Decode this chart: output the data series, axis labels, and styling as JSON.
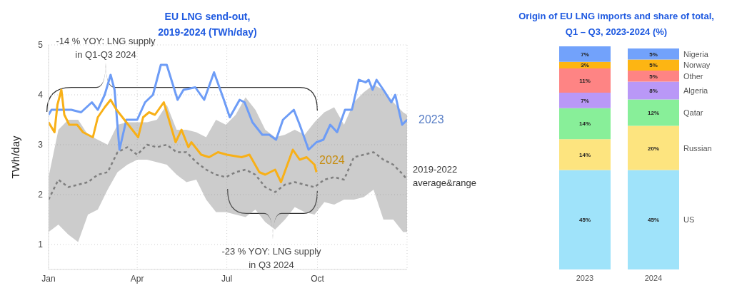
{
  "chart_data": [
    {
      "type": "line",
      "title": "EU LNG send-out,\n2019-2024 (TWh/day)",
      "ylabel": "TWh/day",
      "xlim": [
        "--01-01",
        "--12-31"
      ],
      "xticks": [
        {
          "value": "--01-01",
          "label": "Jan"
        },
        {
          "value": "--04-01",
          "label": "Apr"
        },
        {
          "value": "--07-01",
          "label": "Jul"
        },
        {
          "value": "--10-01",
          "label": "Oct"
        }
      ],
      "ylim": [
        0.5,
        5
      ],
      "yticks": [
        1,
        2,
        3,
        4,
        5
      ],
      "grid": true,
      "annotations": [
        "-14 % YOY: LNG supply\nin Q1-Q3 2024",
        "-23 % YOY: LNG supply\nin Q3 2024"
      ],
      "series": [
        {
          "name": "2019-2022 average&range",
          "color": "#7f7f7f",
          "line_style": "dashed",
          "x": [
            "--01-01",
            "--01-11",
            "--01-21",
            "--01-31",
            "--02-10",
            "--02-20",
            "--03-02",
            "--03-12",
            "--03-22",
            "--04-01",
            "--04-11",
            "--04-21",
            "--05-01",
            "--05-11",
            "--05-21",
            "--05-31",
            "--06-10",
            "--06-20",
            "--06-30",
            "--07-10",
            "--07-20",
            "--07-30",
            "--08-09",
            "--08-19",
            "--08-29",
            "--09-08",
            "--09-18",
            "--09-28",
            "--10-08",
            "--10-18",
            "--10-28",
            "--11-07",
            "--11-17",
            "--11-27",
            "--12-07",
            "--12-17",
            "--12-27",
            "--12-31"
          ],
          "values": [
            1.9,
            2.3,
            2.15,
            2.2,
            2.25,
            2.4,
            2.45,
            2.85,
            2.95,
            2.8,
            3.0,
            2.95,
            3.0,
            2.85,
            2.85,
            2.65,
            2.5,
            2.4,
            2.35,
            2.45,
            2.5,
            2.4,
            2.15,
            2.05,
            2.2,
            2.25,
            2.2,
            2.15,
            2.3,
            2.35,
            2.3,
            2.75,
            2.8,
            2.85,
            2.7,
            2.6,
            2.4,
            2.3
          ],
          "lower": [
            1.25,
            1.4,
            1.2,
            1.05,
            1.6,
            1.7,
            2.1,
            2.45,
            2.6,
            2.7,
            2.7,
            2.65,
            2.6,
            2.4,
            2.25,
            2.3,
            1.9,
            1.65,
            1.65,
            1.6,
            1.55,
            1.7,
            1.45,
            1.3,
            1.5,
            1.75,
            1.65,
            1.6,
            1.85,
            1.8,
            1.9,
            1.9,
            1.95,
            2.1,
            1.5,
            1.5,
            1.25,
            1.25
          ],
          "upper": [
            2.35,
            3.3,
            3.5,
            3.5,
            3.2,
            3.1,
            3.0,
            3.4,
            3.45,
            3.45,
            3.45,
            3.5,
            3.8,
            3.3,
            3.3,
            3.25,
            3.15,
            3.5,
            3.4,
            3.6,
            3.95,
            3.7,
            3.3,
            3.15,
            3.2,
            3.3,
            3.2,
            3.45,
            3.65,
            3.75,
            3.4,
            3.85,
            4.05,
            4.2,
            4.1,
            3.85,
            3.65,
            3.6
          ]
        },
        {
          "name": "2023",
          "color": "#6d9cf6",
          "x": [
            "--01-01",
            "--01-04",
            "--01-24",
            "--02-03",
            "--02-14",
            "--02-20",
            "--02-27",
            "--03-05",
            "--03-09",
            "--03-14",
            "--03-21",
            "--04-01",
            "--04-09",
            "--04-17",
            "--04-25",
            "--05-01",
            "--05-12",
            "--05-18",
            "--05-30",
            "--06-08",
            "--06-18",
            "--06-28",
            "--07-04",
            "--07-14",
            "--07-19",
            "--07-27",
            "--08-06",
            "--08-13",
            "--08-20",
            "--08-27",
            "--09-07",
            "--09-13",
            "--09-22",
            "--09-30",
            "--10-07",
            "--10-14",
            "--10-21",
            "--10-29",
            "--11-05",
            "--11-12",
            "--11-19",
            "--11-22",
            "--11-26",
            "--11-30",
            "--12-07",
            "--12-15",
            "--12-19",
            "--12-26",
            "--12-31"
          ],
          "values": [
            3.6,
            3.7,
            3.7,
            3.65,
            3.85,
            3.7,
            4.0,
            4.4,
            4.1,
            2.9,
            3.5,
            3.5,
            3.85,
            4.0,
            4.6,
            4.6,
            3.9,
            4.1,
            4.15,
            3.9,
            4.45,
            3.9,
            3.55,
            3.9,
            3.85,
            3.45,
            3.2,
            3.2,
            3.1,
            3.5,
            3.7,
            3.4,
            2.9,
            3.05,
            3.1,
            3.4,
            3.25,
            3.7,
            3.7,
            4.3,
            4.25,
            4.3,
            4.1,
            4.3,
            4.1,
            3.85,
            4.0,
            3.4,
            3.5
          ]
        },
        {
          "name": "2024",
          "color": "#f8b017",
          "x": [
            "--01-01",
            "--01-07",
            "--01-10",
            "--01-14",
            "--01-17",
            "--01-22",
            "--01-30",
            "--02-05",
            "--02-15",
            "--02-20",
            "--02-27",
            "--03-05",
            "--03-11",
            "--03-21",
            "--04-02",
            "--04-07",
            "--04-13",
            "--04-19",
            "--04-28",
            "--05-10",
            "--05-16",
            "--05-23",
            "--05-26",
            "--06-05",
            "--06-13",
            "--06-22",
            "--07-01",
            "--07-16",
            "--07-24",
            "--08-03",
            "--08-09",
            "--08-19",
            "--08-25",
            "--09-06",
            "--09-13",
            "--09-20",
            "--09-28",
            "--09-30"
          ],
          "values": [
            3.45,
            3.25,
            3.8,
            4.1,
            3.6,
            3.4,
            3.4,
            3.25,
            3.15,
            3.55,
            3.75,
            3.9,
            3.7,
            3.45,
            3.15,
            3.55,
            3.65,
            3.6,
            3.85,
            3.05,
            3.3,
            2.95,
            3.05,
            2.8,
            2.75,
            2.85,
            2.8,
            2.75,
            2.8,
            2.45,
            2.4,
            2.5,
            2.25,
            2.9,
            2.7,
            2.75,
            2.6,
            2.45
          ]
        }
      ]
    },
    {
      "type": "bar",
      "stacked": true,
      "title": "Origin of EU LNG imports and share of total,\nQ1 – Q3, 2023-2024 (%)",
      "categories": [
        "2023",
        "2024"
      ],
      "series": [
        {
          "name": "US",
          "color": "#9fe3fa",
          "values": [
            45,
            45
          ],
          "value_labels": [
            "45%",
            "45%"
          ]
        },
        {
          "name": "Russian",
          "color": "#fde47f",
          "values": [
            14,
            20
          ],
          "value_labels": [
            "14%",
            "20%"
          ]
        },
        {
          "name": "Qatar",
          "color": "#88ef99",
          "values": [
            14,
            12
          ],
          "value_labels": [
            "14%",
            "12%"
          ]
        },
        {
          "name": "Algeria",
          "color": "#b998f7",
          "values": [
            7,
            8
          ],
          "value_labels": [
            "7%",
            "8%"
          ]
        },
        {
          "name": "Other",
          "color": "#fe8484",
          "values": [
            11,
            5
          ],
          "value_labels": [
            "11%",
            "5%"
          ]
        },
        {
          "name": "Norway",
          "color": "#fdb513",
          "values": [
            3,
            5
          ],
          "value_labels": [
            "3%",
            "5%"
          ]
        },
        {
          "name": "Nigeria",
          "color": "#72a2fb",
          "values": [
            7,
            5
          ],
          "value_labels": [
            "7%",
            "5%"
          ]
        }
      ]
    }
  ]
}
